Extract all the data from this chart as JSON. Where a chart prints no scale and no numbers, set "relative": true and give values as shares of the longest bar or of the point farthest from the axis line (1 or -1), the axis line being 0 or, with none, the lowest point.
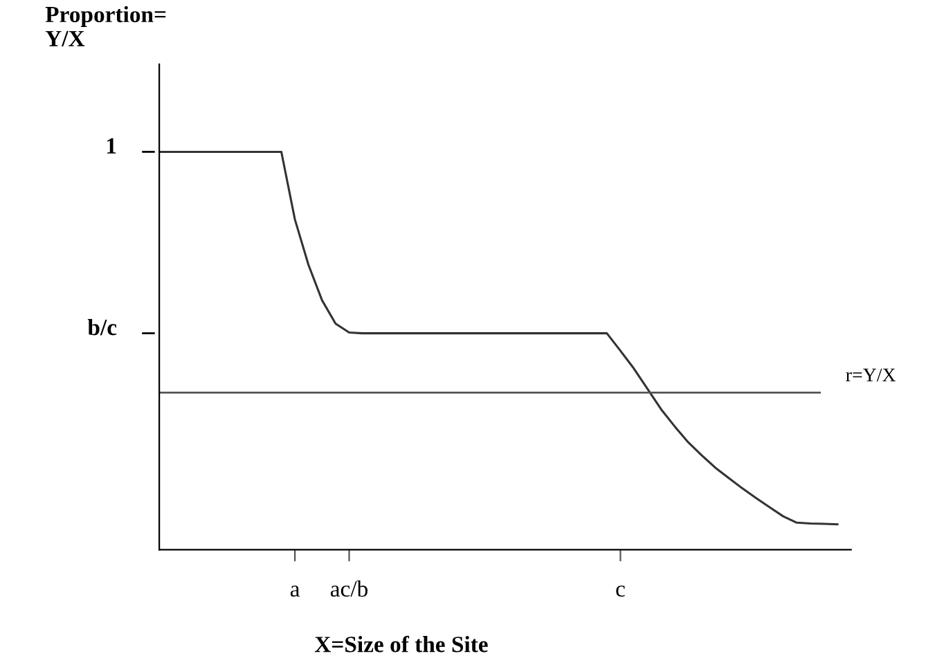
{
  "chart_data": {
    "type": "line",
    "relative": true,
    "xlabel": "X=Size of the Site",
    "ylabel": "Proportion=\nY/X",
    "grid": false,
    "legend": false,
    "marker": "none",
    "line_style": "solid",
    "categories": [
      null,
      null,
      null,
      null,
      null,
      null,
      null,
      null,
      null,
      null,
      "a",
      null,
      null,
      null,
      "ac/b",
      null,
      null,
      null,
      null,
      null,
      null,
      null,
      null,
      null,
      null,
      null,
      null,
      null,
      null,
      null,
      null,
      null,
      null,
      null,
      "c",
      null,
      null,
      null,
      null,
      null,
      null,
      null,
      null,
      null,
      null,
      null,
      null,
      null,
      null,
      null,
      null
    ],
    "series": [
      {
        "color": "#333333",
        "values": [
          1,
          1,
          1,
          1,
          1,
          1,
          1,
          1,
          1,
          1,
          0.83,
          0.716,
          0.627,
          0.568,
          0.546,
          0.544,
          0.544,
          0.544,
          0.544,
          0.544,
          0.544,
          0.544,
          0.544,
          0.544,
          0.544,
          0.544,
          0.544,
          0.544,
          0.544,
          0.544,
          0.544,
          0.544,
          0.544,
          0.544,
          0.5,
          0.455,
          0.404,
          0.353,
          0.31,
          0.27,
          0.237,
          0.206,
          0.18,
          0.154,
          0.13,
          0.107,
          0.084,
          0.068,
          0.066,
          0.065,
          0.064
        ]
      }
    ],
    "annotations": [
      "1",
      "b/c"
    ],
    "ref_lines": [
      {
        "axis": "y",
        "value": 0.395,
        "label": "r=Y/X",
        "color": "#555555",
        "line_style": "solid"
      }
    ]
  }
}
